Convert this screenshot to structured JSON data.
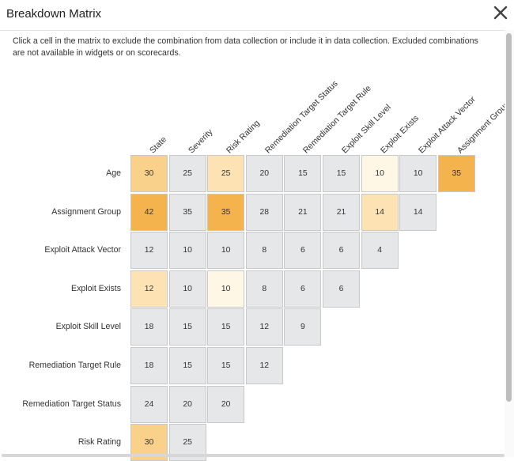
{
  "window": {
    "title": "Breakdown Matrix",
    "description": "Click a cell in the matrix to exclude the combination from data collection or include it in data collection. Excluded combinations are not available in widgets or on scorecards."
  },
  "colors": {
    "neutral": "#e6e7e9",
    "pale": "#fff7e6",
    "light": "#fde3b4",
    "medium": "#fad18a",
    "strong": "#f5b34e"
  },
  "columns": [
    "State",
    "Severity",
    "Risk Rating",
    "Remediation Target Status",
    "Remediation Target Rule",
    "Exploit Skill Level",
    "Exploit Exists",
    "Exploit Attack Vector",
    "Assignment Group"
  ],
  "rows": [
    {
      "label": "Age",
      "cells": [
        {
          "value": "30",
          "tone": "medium"
        },
        {
          "value": "25",
          "tone": "neutral"
        },
        {
          "value": "25",
          "tone": "light"
        },
        {
          "value": "20",
          "tone": "neutral"
        },
        {
          "value": "15",
          "tone": "neutral"
        },
        {
          "value": "15",
          "tone": "neutral"
        },
        {
          "value": "10",
          "tone": "pale"
        },
        {
          "value": "10",
          "tone": "neutral"
        },
        {
          "value": "35",
          "tone": "strong"
        }
      ]
    },
    {
      "label": "Assignment Group",
      "cells": [
        {
          "value": "42",
          "tone": "strong"
        },
        {
          "value": "35",
          "tone": "neutral"
        },
        {
          "value": "35",
          "tone": "strong"
        },
        {
          "value": "28",
          "tone": "neutral"
        },
        {
          "value": "21",
          "tone": "neutral"
        },
        {
          "value": "21",
          "tone": "neutral"
        },
        {
          "value": "14",
          "tone": "light"
        },
        {
          "value": "14",
          "tone": "neutral"
        }
      ]
    },
    {
      "label": "Exploit Attack Vector",
      "cells": [
        {
          "value": "12",
          "tone": "neutral"
        },
        {
          "value": "10",
          "tone": "neutral"
        },
        {
          "value": "10",
          "tone": "neutral"
        },
        {
          "value": "8",
          "tone": "neutral"
        },
        {
          "value": "6",
          "tone": "neutral"
        },
        {
          "value": "6",
          "tone": "neutral"
        },
        {
          "value": "4",
          "tone": "neutral"
        }
      ]
    },
    {
      "label": "Exploit Exists",
      "cells": [
        {
          "value": "12",
          "tone": "light"
        },
        {
          "value": "10",
          "tone": "neutral"
        },
        {
          "value": "10",
          "tone": "pale"
        },
        {
          "value": "8",
          "tone": "neutral"
        },
        {
          "value": "6",
          "tone": "neutral"
        },
        {
          "value": "6",
          "tone": "neutral"
        }
      ]
    },
    {
      "label": "Exploit Skill Level",
      "cells": [
        {
          "value": "18",
          "tone": "neutral"
        },
        {
          "value": "15",
          "tone": "neutral"
        },
        {
          "value": "15",
          "tone": "neutral"
        },
        {
          "value": "12",
          "tone": "neutral"
        },
        {
          "value": "9",
          "tone": "neutral"
        }
      ]
    },
    {
      "label": "Remediation Target Rule",
      "cells": [
        {
          "value": "18",
          "tone": "neutral"
        },
        {
          "value": "15",
          "tone": "neutral"
        },
        {
          "value": "15",
          "tone": "neutral"
        },
        {
          "value": "12",
          "tone": "neutral"
        }
      ]
    },
    {
      "label": "Remediation Target Status",
      "cells": [
        {
          "value": "24",
          "tone": "neutral"
        },
        {
          "value": "20",
          "tone": "neutral"
        },
        {
          "value": "20",
          "tone": "neutral"
        }
      ]
    },
    {
      "label": "Risk Rating",
      "cells": [
        {
          "value": "30",
          "tone": "medium"
        },
        {
          "value": "25",
          "tone": "neutral"
        }
      ]
    }
  ]
}
